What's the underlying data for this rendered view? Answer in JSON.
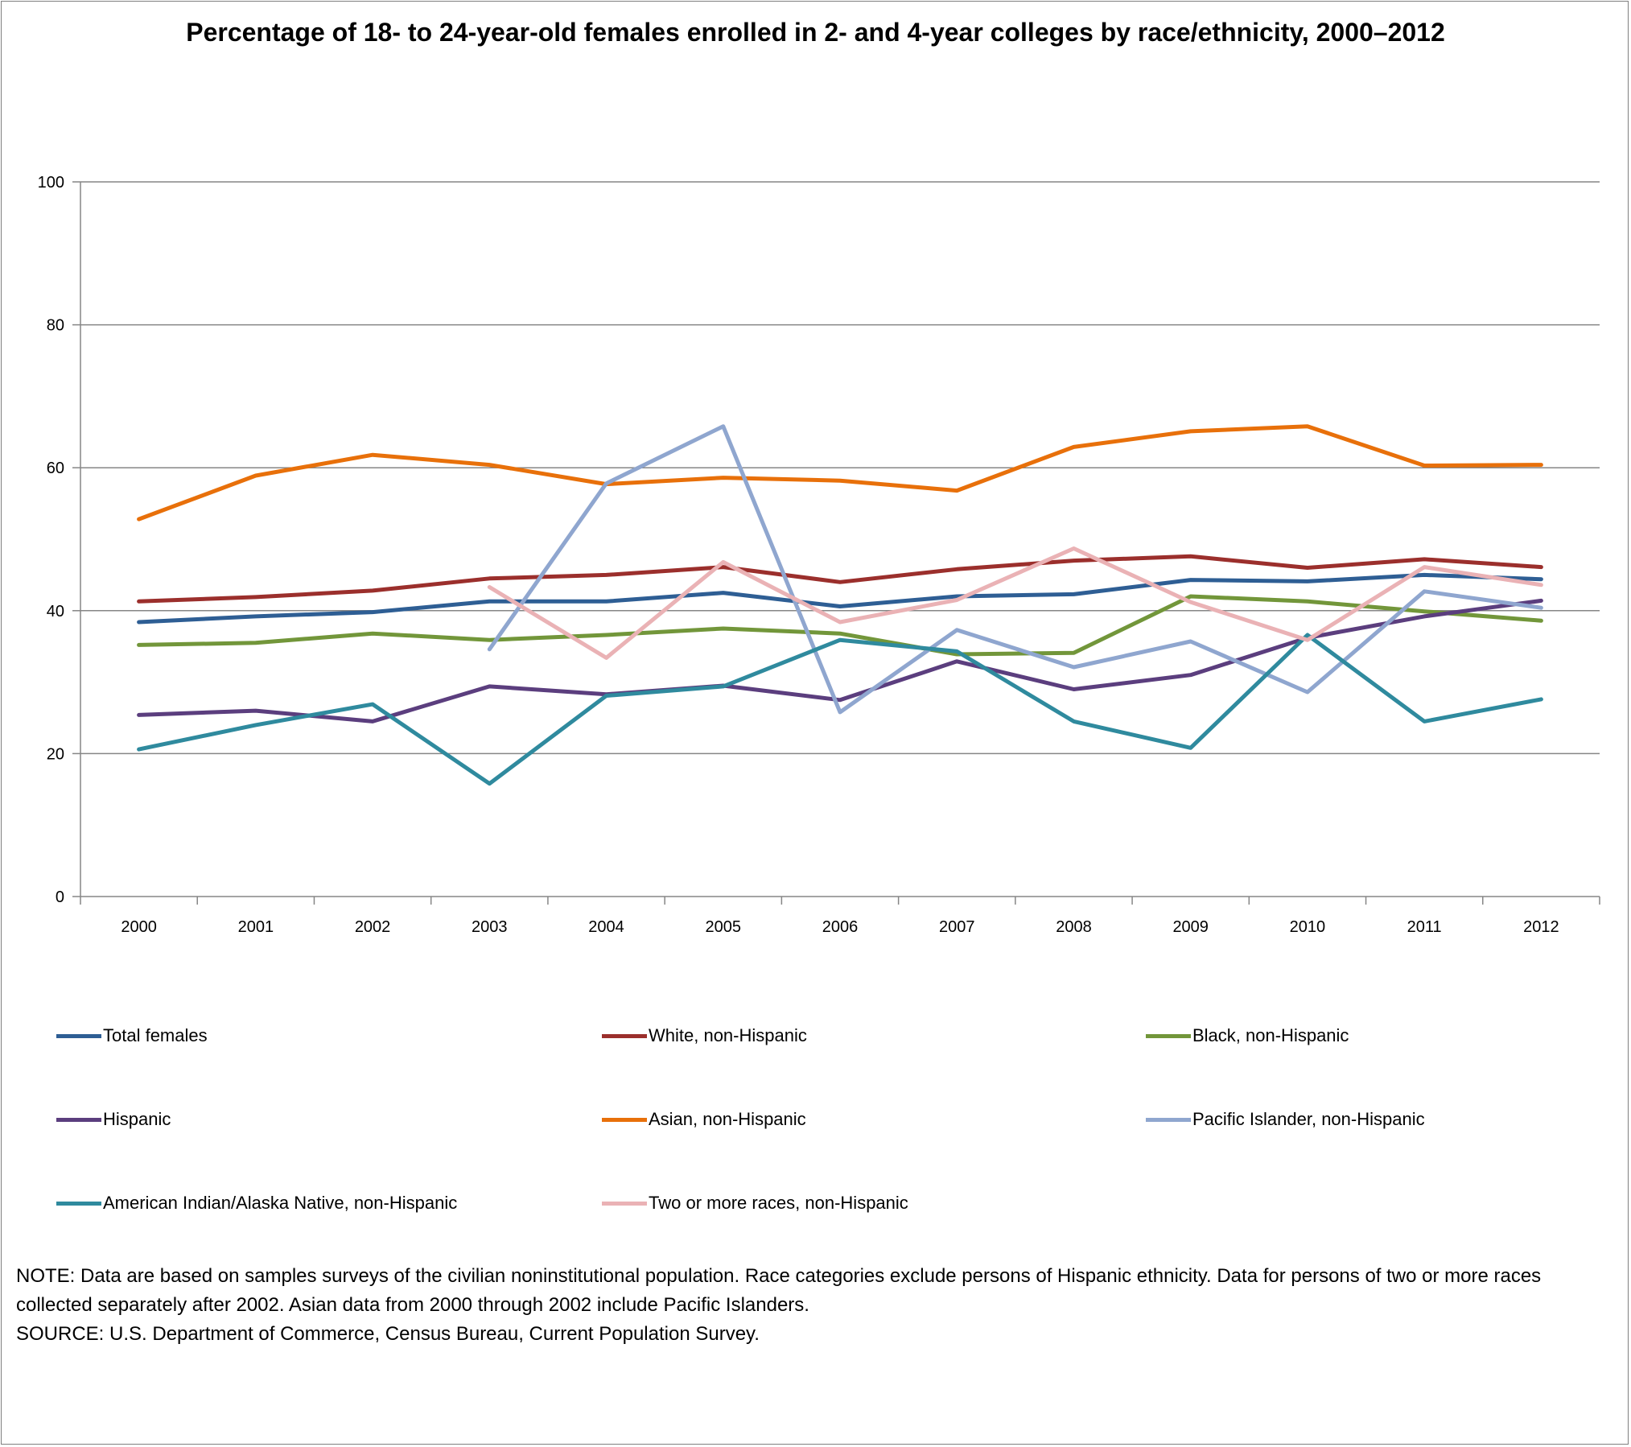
{
  "chart_data": {
    "type": "line",
    "title": "Percentage of 18- to 24-year-old females enrolled in 2- and 4-year colleges by race/ethnicity, 2000–2012",
    "xlabel": "",
    "ylabel": "",
    "ylim": [
      0,
      100
    ],
    "yticks": [
      0,
      20,
      40,
      60,
      80,
      100
    ],
    "grid": true,
    "legend_position": "bottom",
    "categories": [
      "2000",
      "2001",
      "2002",
      "2003",
      "2004",
      "2005",
      "2006",
      "2007",
      "2008",
      "2009",
      "2010",
      "2011",
      "2012"
    ],
    "series": [
      {
        "name": "Total females",
        "color": "#2e5e94",
        "values": [
          38.4,
          39.2,
          39.8,
          41.3,
          41.3,
          42.5,
          40.6,
          42.0,
          42.3,
          44.3,
          44.1,
          45.0,
          44.4
        ]
      },
      {
        "name": "White, non-Hispanic",
        "color": "#9b2f2c",
        "values": [
          41.3,
          41.9,
          42.8,
          44.5,
          45.0,
          46.1,
          44.0,
          45.8,
          47.0,
          47.6,
          46.0,
          47.2,
          46.1
        ]
      },
      {
        "name": "Black, non-Hispanic",
        "color": "#72963a",
        "values": [
          35.2,
          35.5,
          36.8,
          35.9,
          36.6,
          37.5,
          36.8,
          33.9,
          34.1,
          42.0,
          41.3,
          39.9,
          38.6
        ]
      },
      {
        "name": "Hispanic",
        "color": "#5b3e7e",
        "values": [
          25.4,
          26.0,
          24.5,
          29.4,
          28.3,
          29.5,
          27.5,
          32.9,
          29.0,
          31.0,
          36.2,
          39.2,
          41.4
        ]
      },
      {
        "name": "Asian, non-Hispanic",
        "color": "#e8700a",
        "values": [
          52.8,
          58.9,
          61.8,
          60.4,
          57.7,
          58.6,
          58.2,
          56.8,
          62.9,
          65.1,
          65.8,
          60.3,
          60.4
        ]
      },
      {
        "name": "Pacific Islander, non-Hispanic",
        "color": "#8fa6cf",
        "values": [
          null,
          null,
          null,
          34.6,
          57.8,
          65.8,
          25.8,
          37.3,
          32.1,
          35.7,
          28.6,
          42.7,
          40.4
        ]
      },
      {
        "name": "American Indian/Alaska Native, non-Hispanic",
        "color": "#2f8a9e",
        "values": [
          20.6,
          24.0,
          26.9,
          15.8,
          28.1,
          29.4,
          35.9,
          34.3,
          24.5,
          20.8,
          36.6,
          24.5,
          27.6
        ]
      },
      {
        "name": "Two or more races, non-Hispanic",
        "color": "#eab2b5",
        "values": [
          null,
          null,
          null,
          43.3,
          33.4,
          46.8,
          38.4,
          41.5,
          48.7,
          41.2,
          35.9,
          46.1,
          43.6
        ]
      }
    ]
  },
  "notes": {
    "note": "NOTE: Data are based on samples surveys of the civilian noninstitutional population. Race categories exclude persons of Hispanic ethnicity. Data for persons of two or more races collected separately after 2002.  Asian data from 2000  through 2002  include Pacific Islanders.",
    "source": "SOURCE: U.S. Department of Commerce, Census Bureau, Current Population Survey."
  }
}
